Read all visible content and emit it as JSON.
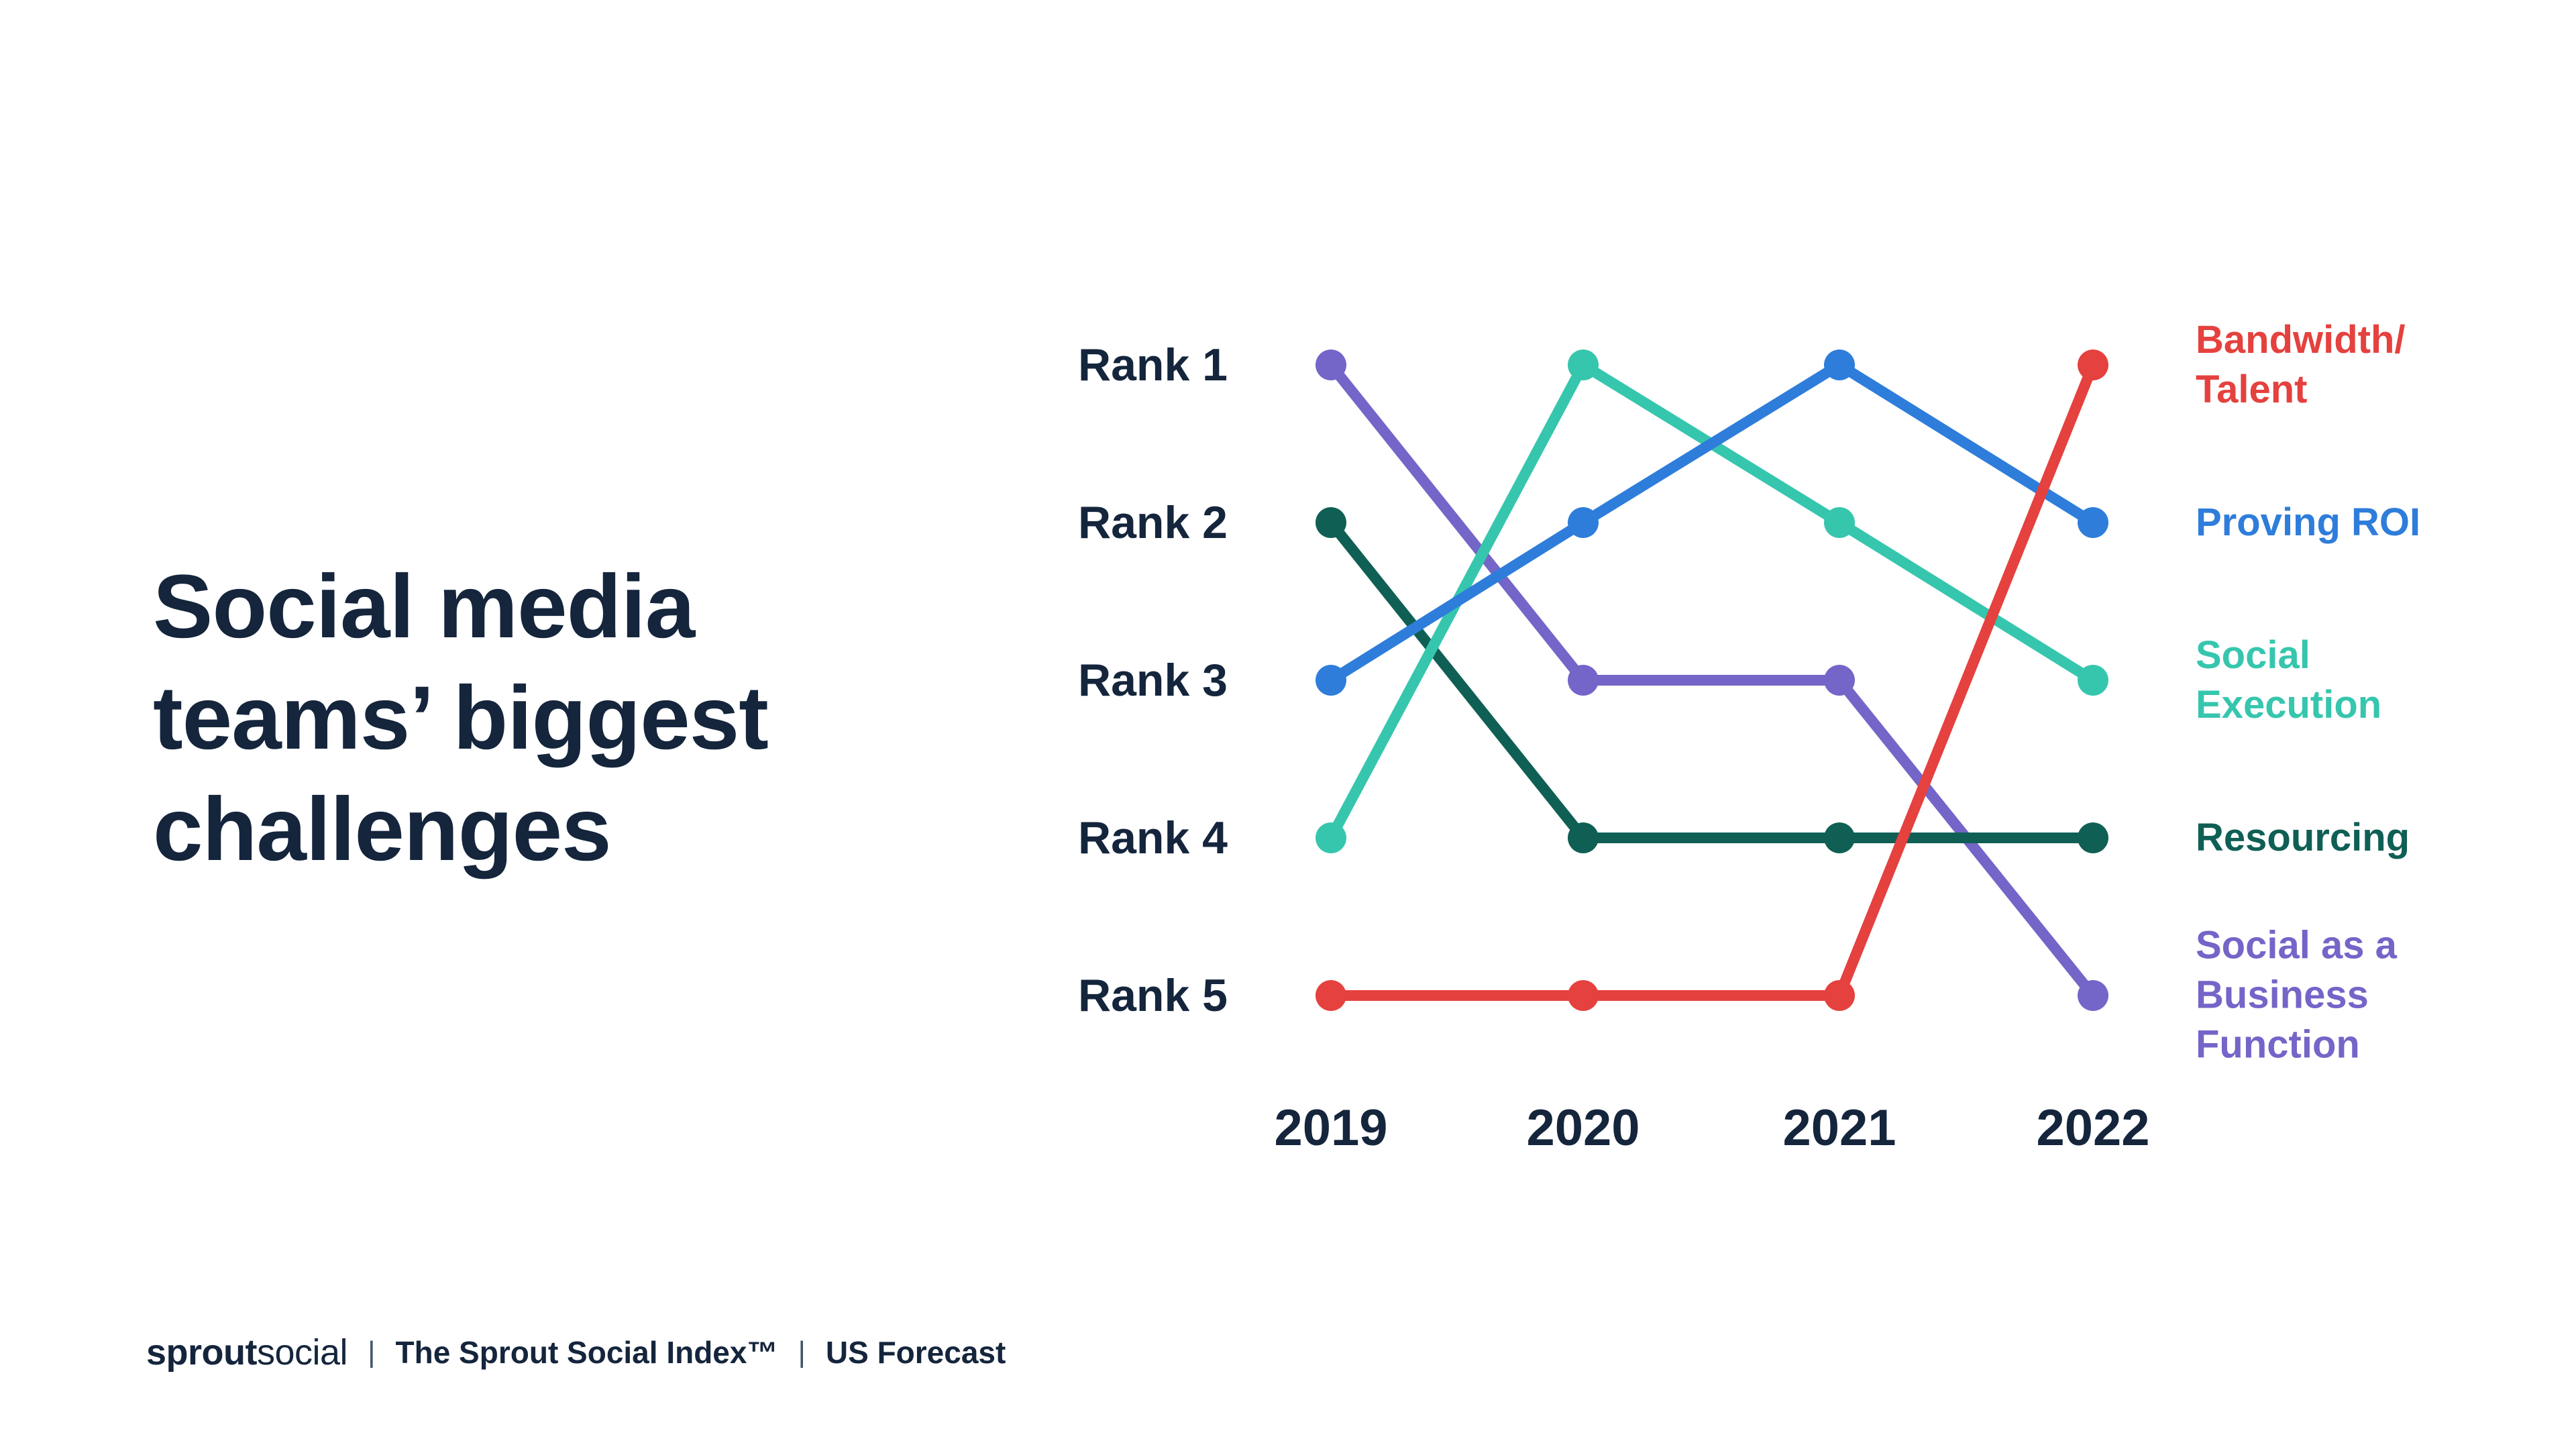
{
  "title": {
    "lines": [
      "Social media",
      "teams’ biggest",
      "challenges"
    ]
  },
  "footer": {
    "brand_bold": "sprout",
    "brand_regular": "social",
    "separator": "|",
    "index_label": "The Sprout Social Index™",
    "forecast_label": "US Forecast"
  },
  "chart_data": {
    "type": "line",
    "subtype": "bump-rank-chart",
    "title": "Social media teams’ biggest challenges",
    "xlabel": "",
    "ylabel": "",
    "x": [
      2019,
      2020,
      2021,
      2022
    ],
    "x_labels": [
      "2019",
      "2020",
      "2021",
      "2022"
    ],
    "rank_labels": [
      "Rank 1",
      "Rank 2",
      "Rank 3",
      "Rank 4",
      "Rank 5"
    ],
    "ylim": [
      1,
      5
    ],
    "y_axis_inverted": true,
    "grid": false,
    "legend_position": "right",
    "series": [
      {
        "name": "Social as a Business Function",
        "legend_lines": [
          "Social as a",
          "Business",
          "Function"
        ],
        "color": "#7465c8",
        "values": [
          1,
          3,
          3,
          5
        ]
      },
      {
        "name": "Resourcing",
        "legend_lines": [
          "Resourcing"
        ],
        "color": "#0f5f54",
        "values": [
          2,
          4,
          4,
          4
        ]
      },
      {
        "name": "Social Execution",
        "legend_lines": [
          "Social",
          "Execution"
        ],
        "color": "#36c6ae",
        "values": [
          4,
          1,
          2,
          3
        ]
      },
      {
        "name": "Proving ROI",
        "legend_lines": [
          "Proving ROI"
        ],
        "color": "#2e7ddb",
        "values": [
          3,
          2,
          1,
          2
        ]
      },
      {
        "name": "Bandwidth/Talent",
        "legend_lines": [
          "Bandwidth/",
          "Talent"
        ],
        "color": "#e5413e",
        "values": [
          5,
          5,
          5,
          1
        ]
      }
    ]
  }
}
